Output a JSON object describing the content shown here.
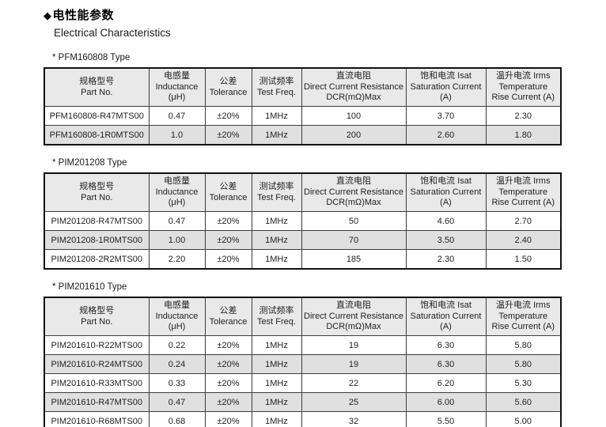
{
  "header": {
    "diamond": "◆",
    "title_cn": "电性能参数",
    "title_en": "Electrical Characteristics"
  },
  "columns": [
    {
      "lines": [
        "规格型号",
        "Part No."
      ]
    },
    {
      "lines": [
        "电感量",
        "Inductance",
        "(μH)"
      ]
    },
    {
      "lines": [
        "公差",
        "Tolerance"
      ]
    },
    {
      "lines": [
        "测试频率",
        "Test Freq."
      ]
    },
    {
      "lines": [
        "直流电阻",
        "Direct Current Resistance",
        "DCR(mΩ)Max"
      ]
    },
    {
      "lines": [
        "饱和电流 Isat",
        "Saturation Current",
        "(A)"
      ]
    },
    {
      "lines": [
        "温升电流 Irms",
        "Temperature",
        "Rise Current (A)"
      ]
    }
  ],
  "tables": [
    {
      "type_label": "* PFM160808 Type",
      "rows": [
        [
          "PFM160808-R47MTS00",
          "0.47",
          "±20%",
          "1MHz",
          "100",
          "3.70",
          "2.30"
        ],
        [
          "PFM160808-1R0MTS00",
          "1.0",
          "±20%",
          "1MHz",
          "200",
          "2.60",
          "1.80"
        ]
      ]
    },
    {
      "type_label": "* PIM201208 Type",
      "rows": [
        [
          "PIM201208-R47MTS00",
          "0.47",
          "±20%",
          "1MHz",
          "50",
          "4.60",
          "2.70"
        ],
        [
          "PIM201208-1R0MTS00",
          "1.00",
          "±20%",
          "1MHz",
          "70",
          "3.50",
          "2.40"
        ],
        [
          "PIM201208-2R2MTS00",
          "2.20",
          "±20%",
          "1MHz",
          "185",
          "2.30",
          "1.50"
        ]
      ]
    },
    {
      "type_label": "* PIM201610 Type",
      "rows": [
        [
          "PIM201610-R22MTS00",
          "0.22",
          "±20%",
          "1MHz",
          "19",
          "6.30",
          "5.80"
        ],
        [
          "PIM201610-R24MTS00",
          "0.24",
          "±20%",
          "1MHz",
          "19",
          "6.30",
          "5.80"
        ],
        [
          "PIM201610-R33MTS00",
          "0.33",
          "±20%",
          "1MHz",
          "22",
          "6.20",
          "5.30"
        ],
        [
          "PIM201610-R47MTS00",
          "0.47",
          "±20%",
          "1MHz",
          "25",
          "6.00",
          "5.60"
        ],
        [
          "PIM201610-R68MTS00",
          "0.68",
          "±20%",
          "1MHz",
          "32",
          "5.50",
          "5.00"
        ]
      ]
    }
  ],
  "colors": {
    "header_bg": "#e9e9e9",
    "alt_row_bg": "#e0e0e0",
    "outer_border": "#111111",
    "inner_border": "#3d3d3d",
    "text": "#1f1f1f"
  }
}
